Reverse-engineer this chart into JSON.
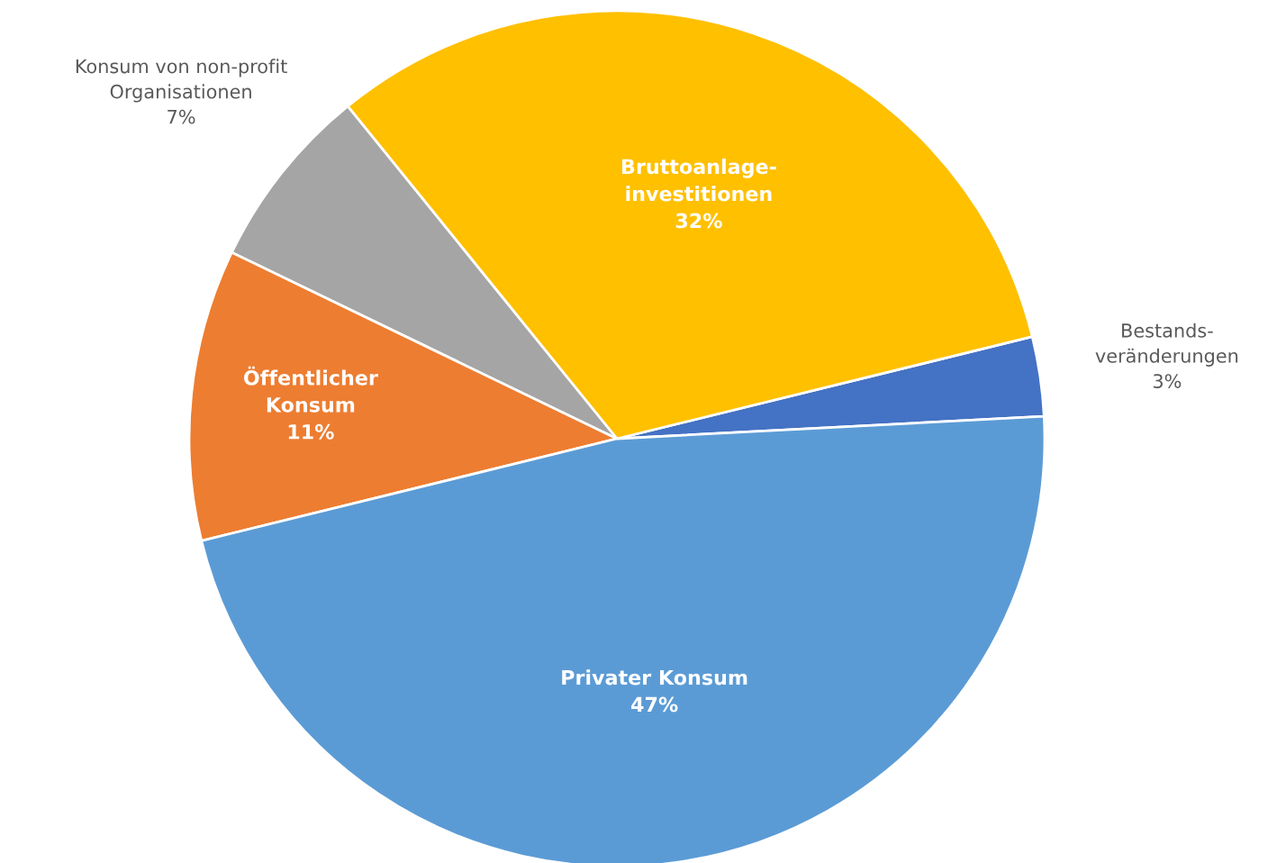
{
  "chart_data": {
    "type": "pie",
    "categories": [
      "Bestands-\nveränderungen",
      "Bruttoanlage-\ninvestitionen",
      "Konsum von non-profit\nOrganisationen",
      "Öffentlicher\nKonsum",
      "Privater Konsum"
    ],
    "values": [
      3,
      32,
      7,
      11,
      47
    ],
    "value_labels": [
      "3%",
      "32%",
      "7%",
      "11%",
      "47%"
    ],
    "colors": [
      "#4472c4",
      "#ffc000",
      "#a5a5a5",
      "#ed7d31",
      "#5b9bd5"
    ],
    "legend": false
  }
}
